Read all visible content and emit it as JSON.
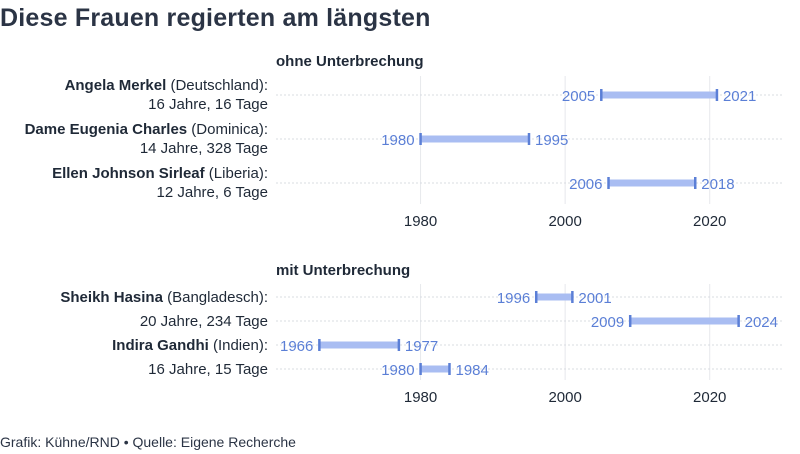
{
  "title": "Diese Frauen regierten am längsten",
  "footer": "Grafik: Kühne/RND • Quelle: Eigene Recherche",
  "colors": {
    "bar": "#a9bdf2",
    "bar_end": "#5b7fd6",
    "year_text": "#5b7fd6",
    "grid": "#e6e8ec",
    "row_line": "#d9dce2"
  },
  "chart_data": [
    {
      "type": "bar",
      "orientation": "horizontal-range",
      "title": "ohne Unterbrechung",
      "xlim": [
        1960,
        2030
      ],
      "xticks": [
        1980,
        2000,
        2020
      ],
      "grid": true,
      "rows": [
        {
          "name": "Angela Merkel",
          "detail": "(Deutschland):",
          "duration": "16 Jahre, 16 Tage",
          "ranges": [
            {
              "start": 2005,
              "end": 2021
            }
          ]
        },
        {
          "name": "Dame Eugenia Charles",
          "detail": "(Dominica):",
          "duration": "14 Jahre, 328 Tage",
          "ranges": [
            {
              "start": 1980,
              "end": 1995
            }
          ]
        },
        {
          "name": "Ellen Johnson Sirleaf",
          "detail": "(Liberia):",
          "duration": "12 Jahre, 6 Tage",
          "ranges": [
            {
              "start": 2006,
              "end": 2018
            }
          ]
        }
      ]
    },
    {
      "type": "bar",
      "orientation": "horizontal-range",
      "title": "mit Unterbrechung",
      "xlim": [
        1960,
        2030
      ],
      "xticks": [
        1980,
        2000,
        2020
      ],
      "grid": true,
      "people": [
        {
          "name": "Sheikh Hasina",
          "detail": "(Bangladesch):",
          "duration": "20 Jahre, 234 Tage",
          "ranges": [
            {
              "start": 1996,
              "end": 2001
            },
            {
              "start": 2009,
              "end": 2024
            }
          ]
        },
        {
          "name": "Indira Gandhi",
          "detail": "(Indien):",
          "duration": "16 Jahre, 15 Tage",
          "ranges": [
            {
              "start": 1966,
              "end": 1977
            },
            {
              "start": 1980,
              "end": 1984
            }
          ]
        }
      ]
    }
  ]
}
